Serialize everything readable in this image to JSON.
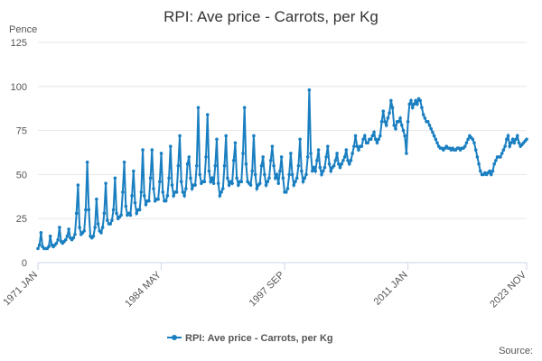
{
  "chart_data": {
    "type": "line",
    "title": "RPI: Ave price - Carrots, per Kg",
    "y_label": "Pence",
    "source": "Source:",
    "ylim": [
      0,
      125
    ],
    "yticks": [
      0,
      25,
      50,
      75,
      100,
      125
    ],
    "grid": true,
    "legend": "bottom",
    "categories": [
      "1971 JAN",
      null,
      null,
      null,
      null,
      null,
      null,
      null,
      null,
      null,
      null,
      null,
      null,
      null,
      null,
      null,
      null,
      null,
      null,
      null,
      null,
      null,
      null,
      null,
      null,
      null,
      null,
      null,
      null,
      null,
      null,
      null,
      null,
      null,
      null,
      null,
      null,
      null,
      null,
      null,
      null,
      null,
      null,
      null,
      null,
      null,
      null,
      null,
      null,
      null,
      null,
      null,
      null,
      null,
      null,
      null,
      null,
      null,
      null,
      null,
      null,
      null,
      null,
      null,
      null,
      null,
      null,
      null,
      null,
      null,
      null,
      null,
      null,
      null,
      null,
      null,
      null,
      null,
      null,
      null,
      "1984 MAY",
      null,
      null,
      null,
      null,
      null,
      null,
      null,
      null,
      null,
      null,
      null,
      null,
      null,
      null,
      null,
      null,
      null,
      null,
      null,
      null,
      null,
      null,
      null,
      null,
      null,
      null,
      null,
      null,
      null,
      null,
      null,
      null,
      null,
      null,
      null,
      null,
      null,
      null,
      null,
      null,
      null,
      null,
      null,
      null,
      null,
      null,
      null,
      null,
      null,
      null,
      null,
      null,
      null,
      null,
      null,
      null,
      null,
      null,
      null,
      null,
      null,
      null,
      null,
      null,
      null,
      null,
      null,
      null,
      null,
      null,
      null,
      null,
      null,
      null,
      null,
      null,
      null,
      null,
      null,
      "1997 SEP",
      null,
      null,
      null,
      null,
      null,
      null,
      null,
      null,
      null,
      null,
      null,
      null,
      null,
      null,
      null,
      null,
      null,
      null,
      null,
      null,
      null,
      null,
      null,
      null,
      null,
      null,
      null,
      null,
      null,
      null,
      null,
      null,
      null,
      null,
      null,
      null,
      null,
      null,
      null,
      null,
      null,
      null,
      null,
      null,
      null,
      null,
      null,
      null,
      null,
      null,
      null,
      null,
      null,
      null,
      null,
      null,
      null,
      null,
      null,
      null,
      null,
      null,
      null,
      null,
      null,
      null,
      null,
      null,
      null,
      null,
      null,
      null,
      null,
      null,
      null,
      null,
      null,
      null,
      null,
      "2011 JAN",
      null,
      null,
      null,
      null,
      null,
      null,
      null,
      null,
      null,
      null,
      null,
      null,
      null,
      null,
      null,
      null,
      null,
      null,
      null,
      null,
      null,
      null,
      null,
      null,
      null,
      null,
      null,
      null,
      null,
      null,
      null,
      null,
      null,
      null,
      null,
      null,
      null,
      null,
      null,
      null,
      null,
      null,
      null,
      null,
      null,
      null,
      null,
      null,
      null,
      null,
      null,
      null,
      null,
      null,
      null,
      null,
      null,
      null,
      null,
      null,
      null,
      null,
      null,
      null,
      null,
      null,
      null,
      null,
      null,
      null,
      null,
      null,
      null,
      null,
      null,
      null,
      "2023 NOV"
    ],
    "series": [
      {
        "name": "RPI: Ave price - Carrots, per Kg",
        "color": "#1a7fc1",
        "values": [
          8,
          10,
          17,
          9,
          8,
          8,
          8,
          9,
          15,
          10,
          9,
          10,
          11,
          13,
          20,
          12,
          11,
          12,
          13,
          15,
          19,
          14,
          13,
          14,
          16,
          28,
          44,
          20,
          16,
          17,
          18,
          30,
          57,
          30,
          15,
          14,
          15,
          20,
          36,
          22,
          18,
          17,
          20,
          28,
          45,
          24,
          22,
          22,
          24,
          30,
          48,
          28,
          25,
          26,
          27,
          40,
          57,
          32,
          27,
          28,
          27,
          38,
          52,
          34,
          28,
          30,
          30,
          40,
          64,
          38,
          33,
          35,
          35,
          48,
          64,
          42,
          35,
          36,
          36,
          46,
          62,
          40,
          35,
          35,
          38,
          48,
          66,
          44,
          38,
          40,
          40,
          55,
          72,
          46,
          40,
          38,
          42,
          56,
          60,
          48,
          42,
          44,
          44,
          55,
          88,
          50,
          45,
          46,
          46,
          60,
          84,
          52,
          46,
          48,
          45,
          55,
          70,
          45,
          38,
          40,
          42,
          55,
          72,
          48,
          44,
          46,
          45,
          58,
          68,
          48,
          44,
          46,
          46,
          62,
          88,
          56,
          46,
          45,
          44,
          52,
          72,
          50,
          42,
          44,
          45,
          55,
          60,
          50,
          44,
          46,
          48,
          58,
          66,
          55,
          48,
          50,
          45,
          52,
          60,
          48,
          40,
          40,
          42,
          50,
          62,
          50,
          44,
          46,
          48,
          55,
          70,
          52,
          46,
          48,
          50,
          60,
          98,
          62,
          52,
          54,
          52,
          58,
          64,
          54,
          50,
          52,
          54,
          60,
          66,
          56,
          52,
          54,
          55,
          58,
          62,
          56,
          54,
          56,
          58,
          60,
          64,
          58,
          56,
          58,
          62,
          66,
          72,
          66,
          64,
          66,
          66,
          70,
          72,
          68,
          68,
          70,
          70,
          72,
          74,
          70,
          68,
          70,
          72,
          80,
          86,
          80,
          78,
          82,
          85,
          92,
          88,
          78,
          76,
          80,
          80,
          82,
          78,
          75,
          72,
          62,
          80,
          90,
          92,
          88,
          90,
          92,
          90,
          93,
          92,
          88,
          84,
          82,
          80,
          80,
          78,
          76,
          74,
          72,
          70,
          68,
          66,
          65,
          65,
          64,
          65,
          66,
          65,
          65,
          64,
          65,
          64,
          64,
          65,
          65,
          64,
          65,
          65,
          66,
          68,
          70,
          72,
          71,
          70,
          68,
          64,
          60,
          56,
          52,
          50,
          50,
          51,
          50,
          51,
          52,
          50,
          52,
          56,
          58,
          60,
          60,
          60,
          62,
          64,
          66,
          70,
          72,
          66,
          68,
          70,
          68,
          70,
          72,
          68,
          66,
          67,
          68,
          69,
          70
        ]
      }
    ]
  }
}
